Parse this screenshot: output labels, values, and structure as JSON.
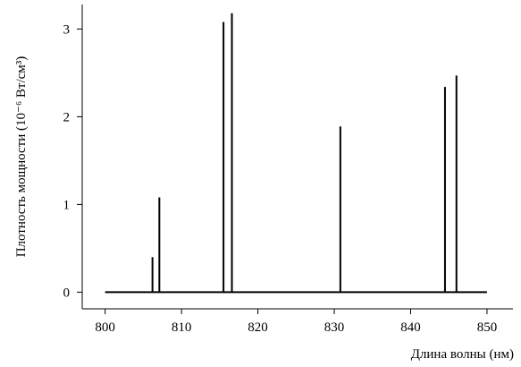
{
  "chart_data": {
    "type": "line",
    "x_label": "Длина волны (нм)",
    "y_label": "Плотность мощности (10⁻⁶ Вт/см³)",
    "series": [
      {
        "color": "#000000",
        "x": [
          800,
          806.2,
          806.2,
          806.2,
          807.1,
          807.1,
          807.1,
          815.5,
          815.5,
          815.5,
          816.6,
          816.6,
          816.6,
          830.8,
          830.8,
          830.8,
          844.5,
          844.5,
          844.5,
          846.0,
          846.0,
          846.0,
          850
        ],
        "values": [
          0,
          0,
          0.4,
          0,
          0,
          1.08,
          0,
          0,
          3.08,
          0,
          0,
          3.18,
          0,
          0,
          1.89,
          0,
          0,
          2.34,
          0,
          0,
          2.47,
          0,
          0
        ]
      }
    ],
    "xlim": [
      797,
      853.4
    ],
    "ylim": [
      -0.19,
      3.28
    ],
    "xticks": [
      800,
      810,
      820,
      830,
      840,
      850
    ],
    "yticks": [
      0,
      1,
      2,
      3
    ],
    "grid": false
  }
}
